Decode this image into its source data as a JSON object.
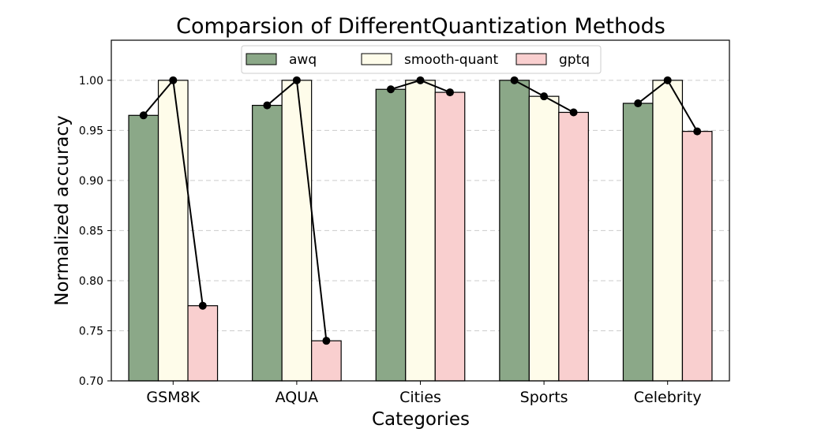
{
  "chart_data": {
    "type": "bar",
    "title": "Comparsion of DifferentQuantization Methods",
    "xlabel": "Categories",
    "ylabel": "Normalized accuracy",
    "categories": [
      "GSM8K",
      "AQUA",
      "Cities",
      "Sports",
      "Celebrity"
    ],
    "ylim": [
      0.7,
      1.04
    ],
    "yticks": [
      "0.70",
      "0.75",
      "0.80",
      "0.85",
      "0.90",
      "0.95",
      "1.00"
    ],
    "grid": "y-dashed",
    "legend_position": "top-center",
    "series": [
      {
        "name": "awq",
        "color": "#8ba888",
        "values": [
          0.965,
          0.975,
          0.991,
          1.0,
          0.977
        ]
      },
      {
        "name": "smooth-quant",
        "color": "#fefcea",
        "values": [
          1.0,
          1.0,
          1.0,
          0.984,
          1.0
        ]
      },
      {
        "name": "gptq",
        "color": "#f9cfcf",
        "values": [
          0.775,
          0.74,
          0.988,
          0.968,
          0.949
        ]
      }
    ],
    "line_overlay": {
      "color": "#000000",
      "marker": "circle",
      "connects": "bar-tops-within-category"
    }
  }
}
